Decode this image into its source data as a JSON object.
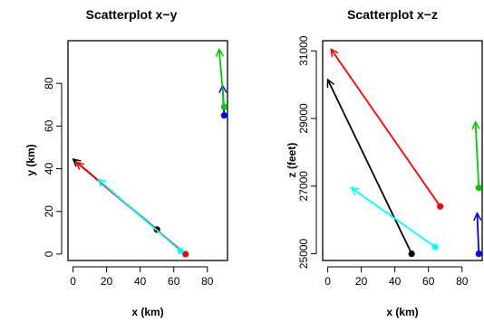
{
  "chart_data": [
    {
      "type": "scatter",
      "title": "Scatterplot x−y",
      "xlabel": "x (km)",
      "ylabel": "y (km)",
      "xticks": [
        "0",
        "20",
        "40",
        "60",
        "80"
      ],
      "yticks": [
        "0",
        "20",
        "40",
        "60",
        "80"
      ],
      "xlim": [
        -3,
        92
      ],
      "ylim": [
        -3,
        100
      ],
      "grid": false,
      "series": [
        {
          "color": "#000000",
          "start": [
            50,
            11.5
          ],
          "end": [
            0,
            44.5
          ]
        },
        {
          "color": "#ff0000",
          "start": [
            67,
            0
          ],
          "end": [
            2,
            43
          ]
        },
        {
          "color": "#00ffff",
          "start": [
            64,
            1.5
          ],
          "end": [
            15,
            35
          ]
        },
        {
          "color": "#0000ff",
          "start": [
            90,
            65
          ],
          "end": [
            89,
            79
          ]
        },
        {
          "color": "#00cc00",
          "start": [
            90,
            69
          ],
          "end": [
            87,
            96
          ]
        }
      ]
    },
    {
      "type": "scatter",
      "title": "Scatterplot x−z",
      "xlabel": "x (km)",
      "ylabel": "z (feet)",
      "xticks": [
        "0",
        "20",
        "40",
        "60",
        "80"
      ],
      "yticks": [
        "25000",
        "27000",
        "29000",
        "31000"
      ],
      "xlim": [
        -3,
        92
      ],
      "ylim": [
        24800,
        31300
      ],
      "grid": false,
      "series": [
        {
          "color": "#000000",
          "start": [
            50,
            25000
          ],
          "end": [
            0,
            30150
          ]
        },
        {
          "color": "#ff0000",
          "start": [
            67,
            26400
          ],
          "end": [
            2,
            31050
          ]
        },
        {
          "color": "#00ffff",
          "start": [
            64,
            25200
          ],
          "end": [
            14,
            26950
          ]
        },
        {
          "color": "#0000ff",
          "start": [
            90,
            25000
          ],
          "end": [
            89,
            26200
          ]
        },
        {
          "color": "#00cc00",
          "start": [
            90,
            26950
          ],
          "end": [
            88,
            28900
          ]
        }
      ]
    }
  ]
}
